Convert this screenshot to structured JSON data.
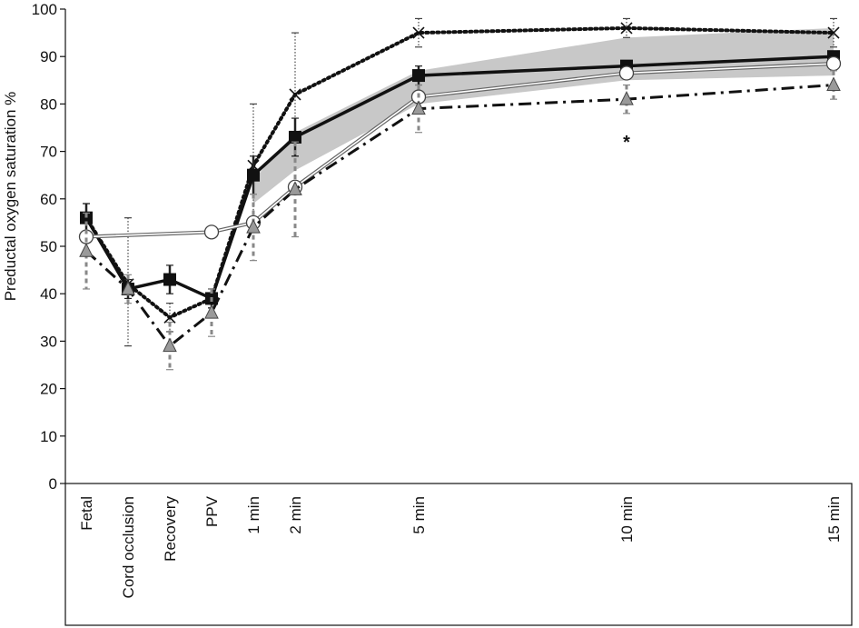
{
  "chart_data": {
    "type": "line",
    "ylabel": "Preductal oxygen saturation %",
    "xlabel": "",
    "ylim": [
      0,
      100
    ],
    "yticks": [
      0,
      10,
      20,
      30,
      40,
      50,
      60,
      70,
      80,
      90,
      100
    ],
    "categories": [
      "Fetal",
      "Cord occlusion",
      "Recovery",
      "PPV",
      "1 min",
      "2 min",
      "5 min",
      "10 min",
      "15 min"
    ],
    "grid": false,
    "legend": "none",
    "reference_band": {
      "x": [
        "1 min",
        "2 min",
        "5 min",
        "10 min",
        "15 min"
      ],
      "lower": [
        59,
        66,
        80,
        85,
        86
      ],
      "upper": [
        64,
        74,
        87,
        94,
        96
      ]
    },
    "series": [
      {
        "marker": "x",
        "line_style": "dotted",
        "color": "#111111",
        "x": [
          "Fetal",
          "Cord occlusion",
          "Recovery",
          "PPV",
          "1 min",
          "2 min",
          "5 min",
          "10 min",
          "15 min"
        ],
        "values": [
          56,
          42,
          35,
          39,
          67,
          82,
          95,
          96,
          95
        ],
        "err_low": [
          3,
          13,
          3,
          2,
          13,
          13,
          3,
          2,
          3
        ],
        "err_high": [
          3,
          14,
          3,
          2,
          13,
          13,
          3,
          2,
          3
        ]
      },
      {
        "marker": "square",
        "line_style": "solid",
        "color": "#111111",
        "x": [
          "Fetal",
          "Cord occlusion",
          "Recovery",
          "PPV",
          "1 min",
          "2 min",
          "5 min",
          "10 min",
          "15 min"
        ],
        "values": [
          56,
          41,
          43,
          39,
          65,
          73,
          86,
          88,
          90
        ],
        "err_low": [
          3,
          2,
          3,
          2,
          4,
          4,
          2,
          1,
          1
        ],
        "err_high": [
          3,
          2,
          3,
          2,
          4,
          4,
          2,
          1,
          1
        ]
      },
      {
        "marker": "circle",
        "line_style": "double",
        "color": "#777777",
        "x": [
          "Fetal",
          "PPV",
          "1 min",
          "2 min",
          "5 min",
          "10 min",
          "15 min"
        ],
        "values": [
          52,
          53,
          55,
          62.5,
          81.5,
          86.5,
          88.5
        ],
        "err_low": [
          0,
          0,
          0,
          0,
          0,
          0,
          0
        ],
        "err_high": [
          0,
          0,
          0,
          0,
          0,
          0,
          0
        ]
      },
      {
        "marker": "triangle",
        "line_style": "dash-dot",
        "color": "#111111",
        "x": [
          "Fetal",
          "Cord occlusion",
          "Recovery",
          "PPV",
          "1 min",
          "2 min",
          "5 min",
          "10 min",
          "15 min"
        ],
        "values": [
          49,
          41,
          29,
          36,
          54,
          62,
          79,
          81,
          84
        ],
        "err_low": [
          8,
          3,
          5,
          5,
          7,
          10,
          5,
          3,
          3
        ],
        "err_high": [
          8,
          3,
          5,
          5,
          7,
          10,
          5,
          3,
          3
        ]
      }
    ],
    "annotations": [
      {
        "text": "*",
        "x": "10 min",
        "y": 73
      }
    ]
  }
}
